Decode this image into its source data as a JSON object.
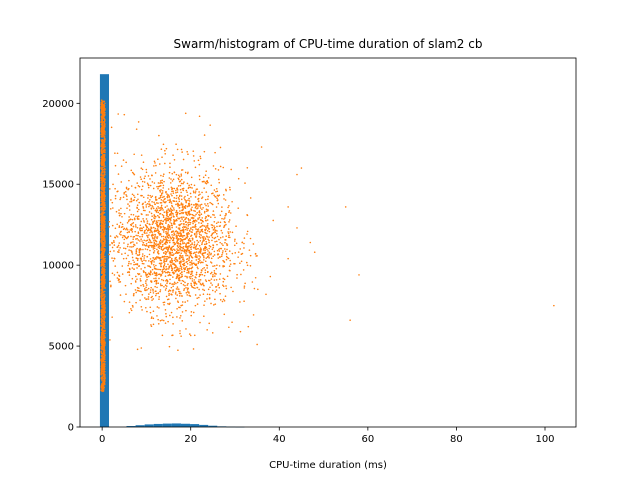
{
  "chart_data": {
    "type": "scatter",
    "title": "Swarm/histogram of CPU-time duration of slam2 cb",
    "xlabel": "CPU-time duration (ms)",
    "ylabel": "",
    "xlim": [
      -5,
      107
    ],
    "ylim": [
      0,
      22800
    ],
    "xticks": [
      0,
      20,
      40,
      60,
      80,
      100
    ],
    "yticks": [
      0,
      5000,
      10000,
      15000,
      20000
    ],
    "grid": false,
    "legend": "none",
    "colors": {
      "histogram": "#1f77b4",
      "swarm": "#ff7f0e"
    },
    "histogram": {
      "bin_width": 2.05,
      "bins": [
        {
          "x0": -0.5,
          "count": 21800
        },
        {
          "x0": 5.5,
          "count": 60
        },
        {
          "x0": 7.55,
          "count": 110
        },
        {
          "x0": 9.6,
          "count": 160
        },
        {
          "x0": 11.65,
          "count": 190
        },
        {
          "x0": 13.7,
          "count": 210
        },
        {
          "x0": 15.75,
          "count": 220
        },
        {
          "x0": 17.8,
          "count": 200
        },
        {
          "x0": 19.85,
          "count": 180
        },
        {
          "x0": 21.9,
          "count": 130
        },
        {
          "x0": 23.95,
          "count": 80
        },
        {
          "x0": 26.0,
          "count": 40
        },
        {
          "x0": 28.05,
          "count": 20
        },
        {
          "x0": 30.1,
          "count": 10
        }
      ]
    },
    "swarm": {
      "near_zero": {
        "x_center": 0.2,
        "y_range": [
          2200,
          20200
        ],
        "count": 1600
      },
      "cluster": {
        "x_mean": 16.5,
        "x_sd": 6.5,
        "y_mean": 11500,
        "y_sd": 2200,
        "count": 2400
      },
      "outliers": [
        {
          "x": 102,
          "y": 7500
        },
        {
          "x": 56,
          "y": 6600
        },
        {
          "x": 58,
          "y": 9400
        },
        {
          "x": 55,
          "y": 13600
        },
        {
          "x": 45,
          "y": 16000
        },
        {
          "x": 44,
          "y": 15600
        },
        {
          "x": 42,
          "y": 13600
        },
        {
          "x": 42,
          "y": 10400
        },
        {
          "x": 47,
          "y": 11400
        },
        {
          "x": 48,
          "y": 10800
        },
        {
          "x": 44,
          "y": 12300
        },
        {
          "x": 36,
          "y": 17300
        },
        {
          "x": 37,
          "y": 8200
        },
        {
          "x": 35,
          "y": 5100
        },
        {
          "x": 5,
          "y": 19300
        },
        {
          "x": 22,
          "y": 19200
        },
        {
          "x": 8,
          "y": 4800
        },
        {
          "x": 33,
          "y": 6200
        }
      ]
    }
  }
}
